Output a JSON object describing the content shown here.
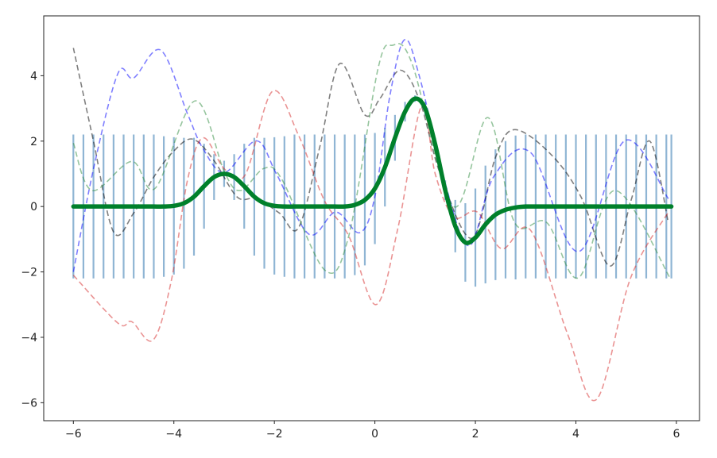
{
  "chart_data": {
    "type": "line",
    "title": "",
    "xlabel": "",
    "ylabel": "",
    "xlim": [
      -6.59,
      6.46
    ],
    "ylim": [
      -6.55,
      5.83
    ],
    "grid": false,
    "x_ticks": [
      "-6",
      "-4",
      "-2",
      "0",
      "2",
      "4",
      "6"
    ],
    "y_ticks": [
      "-6",
      "-4",
      "-2",
      "0",
      "2",
      "4"
    ],
    "mean": {
      "color": "#00802b",
      "x": [
        -6.0,
        -5.8,
        -5.6,
        -5.4,
        -5.2,
        -5.0,
        -4.8,
        -4.6,
        -4.4,
        -4.2,
        -4.0,
        -3.8,
        -3.6,
        -3.4,
        -3.2,
        -3.0,
        -2.8,
        -2.6,
        -2.4,
        -2.2,
        -2.0,
        -1.8,
        -1.6,
        -1.4,
        -1.2,
        -1.0,
        -0.8,
        -0.6,
        -0.4,
        -0.2,
        0.0,
        0.2,
        0.4,
        0.6,
        0.8,
        1.0,
        1.2,
        1.4,
        1.6,
        1.8,
        2.0,
        2.2,
        2.4,
        2.6,
        2.8,
        3.0,
        3.2,
        3.4,
        3.6,
        3.8,
        4.0,
        4.2,
        4.4,
        4.6,
        4.8,
        5.0,
        5.2,
        5.4,
        5.6,
        5.8,
        5.9
      ],
      "y": [
        0,
        0,
        0,
        0,
        0,
        0,
        0,
        0,
        0,
        0,
        0.02,
        0.1,
        0.3,
        0.62,
        0.9,
        1.0,
        0.9,
        0.62,
        0.3,
        0.1,
        0.02,
        0,
        0,
        0,
        0,
        0,
        0,
        0,
        0.05,
        0.2,
        0.55,
        1.2,
        2.1,
        2.9,
        3.3,
        3.0,
        1.9,
        0.5,
        -0.6,
        -1.1,
        -0.95,
        -0.55,
        -0.25,
        -0.1,
        -0.03,
        0,
        0,
        0,
        0,
        0,
        0,
        0,
        0,
        0,
        0,
        0,
        0,
        0,
        0,
        0,
        0
      ],
      "std": [
        2.2,
        2.2,
        2.2,
        2.2,
        2.2,
        2.2,
        2.2,
        2.2,
        2.2,
        2.15,
        2.1,
        2.0,
        1.8,
        1.3,
        0.7,
        0.4,
        0.7,
        1.3,
        1.8,
        2.0,
        2.1,
        2.15,
        2.2,
        2.2,
        2.2,
        2.2,
        2.2,
        2.2,
        2.15,
        2.0,
        1.7,
        1.2,
        0.7,
        0.3,
        0.1,
        0.2,
        0.2,
        0.3,
        0.8,
        1.2,
        1.5,
        1.8,
        2.0,
        2.1,
        2.2,
        2.2,
        2.2,
        2.2,
        2.2,
        2.2,
        2.2,
        2.2,
        2.2,
        2.2,
        2.2,
        2.2,
        2.2,
        2.2,
        2.2,
        2.2,
        2.2
      ],
      "errorbar_color": "#8fb5d4"
    },
    "samples": [
      {
        "color": "#000000",
        "points": [
          [
            -6,
            4.85
          ],
          [
            -5.6,
            2.0
          ],
          [
            -5.2,
            -0.78
          ],
          [
            -4.8,
            -0.2
          ],
          [
            -4.4,
            0.9
          ],
          [
            -4.0,
            1.7
          ],
          [
            -3.62,
            2.06
          ],
          [
            -3.2,
            1.4
          ],
          [
            -2.74,
            0.29
          ],
          [
            -2.36,
            0.24
          ],
          [
            -1.9,
            -0.2
          ],
          [
            -1.52,
            -0.65
          ],
          [
            -1.1,
            1.8
          ],
          [
            -0.7,
            4.37
          ],
          [
            -0.2,
            2.8
          ],
          [
            0.1,
            3.3
          ],
          [
            0.51,
            4.17
          ],
          [
            0.9,
            3.2
          ],
          [
            1.3,
            1.0
          ],
          [
            1.93,
            -0.97
          ],
          [
            2.4,
            1.5
          ],
          [
            2.78,
            2.35
          ],
          [
            3.5,
            1.6
          ],
          [
            4.1,
            0.3
          ],
          [
            4.68,
            -1.82
          ],
          [
            5.1,
            0.2
          ],
          [
            5.47,
            2.0
          ],
          [
            5.84,
            -0.5
          ]
        ]
      },
      {
        "color": "#0000ff",
        "points": [
          [
            -6,
            -2.0
          ],
          [
            -5.58,
            1.29
          ],
          [
            -5.11,
            4.08
          ],
          [
            -4.8,
            3.93
          ],
          [
            -4.26,
            4.78
          ],
          [
            -3.73,
            2.84
          ],
          [
            -3.42,
            1.77
          ],
          [
            -2.99,
            1.04
          ],
          [
            -2.36,
            2.01
          ],
          [
            -1.95,
            0.97
          ],
          [
            -1.31,
            -0.85
          ],
          [
            -0.78,
            -0.17
          ],
          [
            -0.3,
            -0.8
          ],
          [
            0.0,
            0.3
          ],
          [
            0.3,
            3.4
          ],
          [
            0.59,
            5.1
          ],
          [
            0.89,
            3.96
          ],
          [
            1.41,
            0.65
          ],
          [
            1.88,
            -1.2
          ],
          [
            2.36,
            0.9
          ],
          [
            3.1,
            1.65
          ],
          [
            4.05,
            -1.38
          ],
          [
            4.97,
            2.01
          ],
          [
            5.84,
            0.24
          ]
        ]
      },
      {
        "color": "#2e8b3e",
        "points": [
          [
            -6,
            1.94
          ],
          [
            -5.63,
            0.49
          ],
          [
            -4.84,
            1.38
          ],
          [
            -4.37,
            0.56
          ],
          [
            -3.58,
            3.23
          ],
          [
            -2.99,
            1.04
          ],
          [
            -2.67,
            0.49
          ],
          [
            -2.2,
            1.17
          ],
          [
            -1.84,
            0.8
          ],
          [
            -1.0,
            -1.94
          ],
          [
            -0.52,
            -0.9
          ],
          [
            0.06,
            4.2
          ],
          [
            0.35,
            4.93
          ],
          [
            0.74,
            4.37
          ],
          [
            1.57,
            0.0
          ],
          [
            2.25,
            2.72
          ],
          [
            2.78,
            -0.49
          ],
          [
            3.42,
            -0.49
          ],
          [
            4.05,
            -2.18
          ],
          [
            4.78,
            0.49
          ],
          [
            5.89,
            -2.23
          ]
        ]
      },
      {
        "color": "#d62728",
        "points": [
          [
            -6,
            -2.1
          ],
          [
            -5.11,
            -3.57
          ],
          [
            -4.84,
            -3.52
          ],
          [
            -4.41,
            -4.08
          ],
          [
            -4.05,
            -2.26
          ],
          [
            -3.73,
            0.8
          ],
          [
            -3.42,
            2.1
          ],
          [
            -2.99,
            1.14
          ],
          [
            -2.58,
            0.97
          ],
          [
            -2.04,
            3.52
          ],
          [
            -1.52,
            2.18
          ],
          [
            -1.0,
            0.17
          ],
          [
            -0.52,
            -0.9
          ],
          [
            0.02,
            -3.0
          ],
          [
            0.46,
            -0.65
          ],
          [
            0.93,
            3.08
          ],
          [
            1.2,
            1.0
          ],
          [
            1.57,
            -0.32
          ],
          [
            2.04,
            -0.17
          ],
          [
            2.52,
            -1.29
          ],
          [
            3.1,
            -0.73
          ],
          [
            3.83,
            -3.88
          ],
          [
            4.41,
            -5.9
          ],
          [
            5.09,
            -2.18
          ],
          [
            5.84,
            -0.17
          ]
        ]
      }
    ]
  }
}
